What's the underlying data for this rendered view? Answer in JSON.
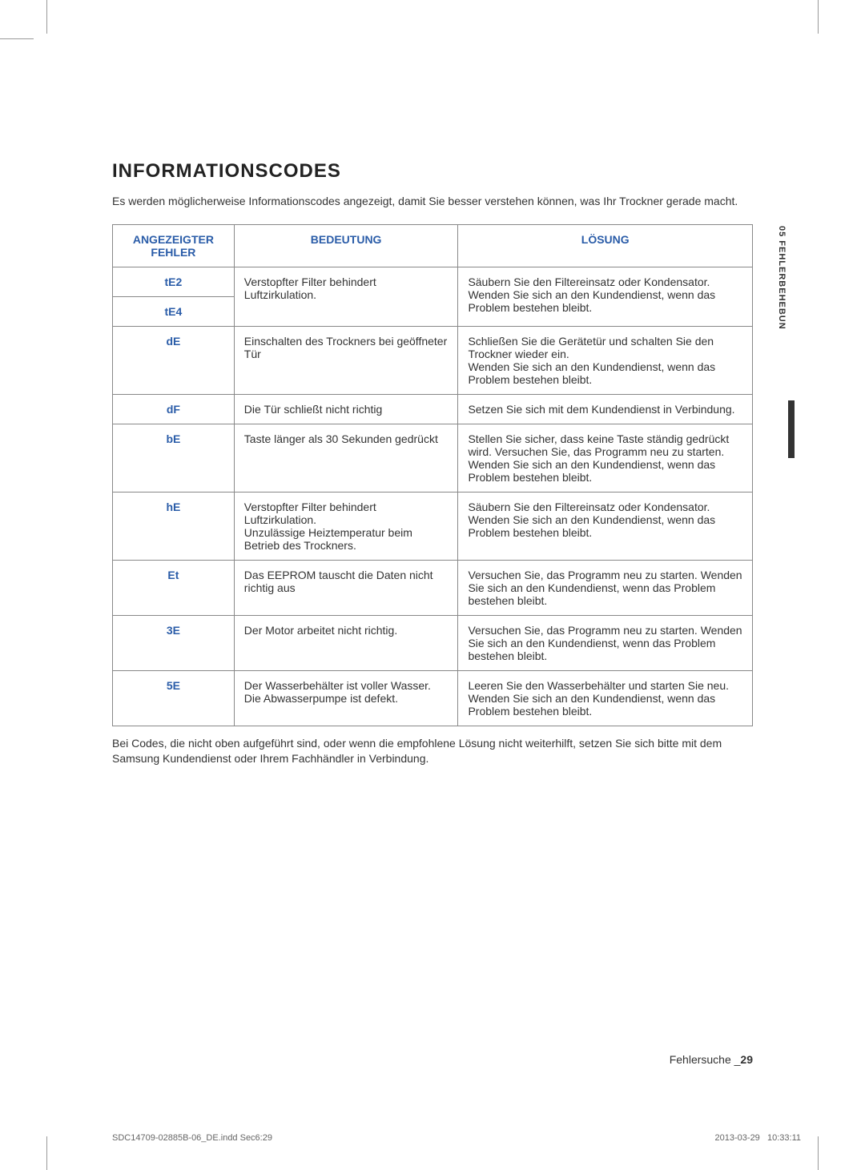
{
  "colors": {
    "heading_blue": "#2a5ca8",
    "border": "#888888",
    "text": "#333333"
  },
  "title": "INFORMATIONSCODES",
  "intro": "Es werden möglicherweise Informationscodes angezeigt, damit Sie besser verstehen können, was Ihr Trockner gerade macht.",
  "side_tab": "05  FEHLERBEHEBUN",
  "table": {
    "headers": {
      "col1_line1": "ANGEZEIGTER",
      "col1_line2": "FEHLER",
      "col2": "BEDEUTUNG",
      "col3": "LÖSUNG"
    },
    "rows": [
      {
        "code1": "tE2",
        "code2": "tE4",
        "meaning": "Verstopfter Filter behindert Luftzirkulation.",
        "solution": "Säubern Sie den Filtereinsatz oder Kondensator.\nWenden Sie sich an den Kundendienst, wenn das Problem bestehen bleibt."
      },
      {
        "code": "dE",
        "meaning": "Einschalten des Trockners bei geöffneter Tür",
        "solution": "Schließen Sie die Gerätetür und schalten Sie den Trockner wieder ein.\nWenden Sie sich an den Kundendienst, wenn das Problem bestehen bleibt."
      },
      {
        "code": "dF",
        "meaning": "Die Tür schließt nicht richtig",
        "solution": "Setzen Sie sich mit dem Kundendienst in Verbindung."
      },
      {
        "code": "bE",
        "meaning": "Taste länger als 30 Sekunden gedrückt",
        "solution": "Stellen Sie sicher, dass keine Taste ständig gedrückt wird. Versuchen Sie, das Programm neu zu starten.  Wenden Sie sich an den Kundendienst, wenn das Problem bestehen bleibt."
      },
      {
        "code": "hE",
        "meaning": "Verstopfter Filter behindert Luftzirkulation.\nUnzulässige Heiztemperatur beim Betrieb des Trockners.",
        "solution": "Säubern Sie den Filtereinsatz oder Kondensator.\nWenden Sie sich an den Kundendienst, wenn das Problem bestehen bleibt."
      },
      {
        "code": "Et",
        "meaning": "Das EEPROM tauscht die Daten nicht richtig aus",
        "solution": "Versuchen Sie, das Programm neu zu starten.  Wenden Sie sich an den Kundendienst, wenn das Problem bestehen bleibt."
      },
      {
        "code": "3E",
        "meaning": "Der Motor arbeitet nicht richtig.",
        "solution": "Versuchen Sie, das Programm neu zu starten.  Wenden Sie sich an den Kundendienst, wenn das Problem bestehen bleibt."
      },
      {
        "code": "5E",
        "meaning": "Der Wasserbehälter ist voller Wasser. Die Abwasserpumpe ist defekt.",
        "solution": "Leeren Sie den Wasserbehälter und starten Sie neu.\nWenden Sie sich an den Kundendienst, wenn das Problem bestehen bleibt."
      }
    ]
  },
  "footnote": "Bei Codes, die nicht oben aufgeführt sind, oder wenn die empfohlene Lösung nicht weiterhilft, setzen Sie sich bitte mit dem Samsung Kundendienst oder Ihrem Fachhändler in Verbindung.",
  "page_footer_label": "Fehlersuche _",
  "page_number": "29",
  "print_left": "SDC14709-02885B-06_DE.indd   Sec6:29",
  "print_date": "2013-03-29",
  "print_time": "10:33:11"
}
